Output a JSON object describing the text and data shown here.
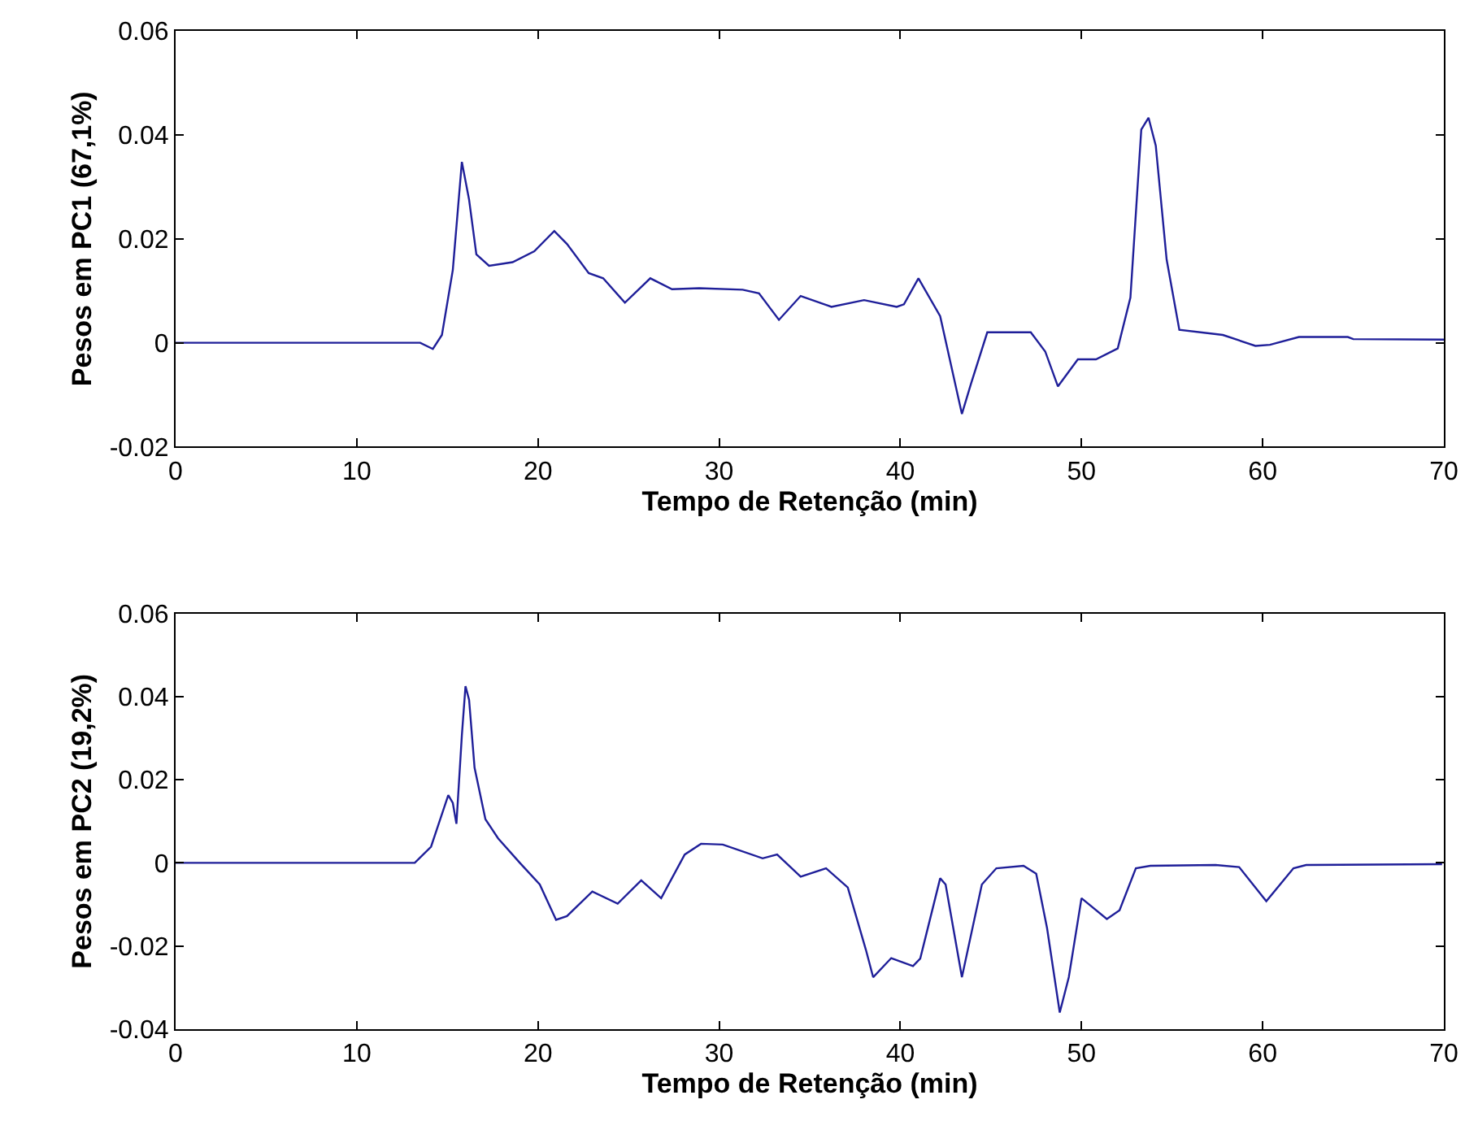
{
  "chart_data": [
    {
      "type": "line",
      "xlabel": "Tempo de Retenção (min)",
      "ylabel": "Pesos em PC1 (67,1%)",
      "xlim": [
        0,
        70
      ],
      "xticks": [
        0,
        10,
        20,
        30,
        40,
        50,
        60,
        70
      ],
      "ylim": [
        -0.02,
        0.06
      ],
      "yticks": [
        -0.02,
        0,
        0.02,
        0.04,
        0.06
      ],
      "marker": "none",
      "line_style": "solid",
      "series": [
        {
          "color": "#1f1f99",
          "x": [
            0,
            13.5,
            14.2,
            14.7,
            15.3,
            15.8,
            16.2,
            16.6,
            17.3,
            18.6,
            19.8,
            20.9,
            21.6,
            22.8,
            23.6,
            24.8,
            26.2,
            27.4,
            28.9,
            31.3,
            32.2,
            33.3,
            34.5,
            36.2,
            38.0,
            39.8,
            40.2,
            41.0,
            42.2,
            43.1,
            43.4,
            43.9,
            44.8,
            47.2,
            48.0,
            48.7,
            49.8,
            50.8,
            52.0,
            52.7,
            53.3,
            53.7,
            54.1,
            54.7,
            55.4,
            57.8,
            59.6,
            60.4,
            62.0,
            64.7,
            65.0,
            70
          ],
          "values": [
            0,
            0,
            -0.0012,
            0.0015,
            0.014,
            0.0348,
            0.0275,
            0.017,
            0.0148,
            0.0155,
            0.0176,
            0.0215,
            0.019,
            0.0134,
            0.0124,
            0.0077,
            0.0124,
            0.0103,
            0.0105,
            0.0102,
            0.0095,
            0.0044,
            0.009,
            0.0069,
            0.0082,
            0.0069,
            0.0074,
            0.0124,
            0.0051,
            -0.009,
            -0.0137,
            -0.0079,
            0.002,
            0.002,
            -0.0017,
            -0.0084,
            -0.0032,
            -0.0032,
            -0.0011,
            0.0087,
            0.041,
            0.0433,
            0.0379,
            0.016,
            0.0025,
            0.0015,
            -0.0006,
            -0.0004,
            0.0011,
            0.0011,
            0.0007,
            0.0006
          ]
        }
      ]
    },
    {
      "type": "line",
      "xlabel": "Tempo de Retenção (min)",
      "ylabel": "Pesos em PC2 (19,2%)",
      "xlim": [
        0,
        70
      ],
      "xticks": [
        0,
        10,
        20,
        30,
        40,
        50,
        60,
        70
      ],
      "ylim": [
        -0.04,
        0.06
      ],
      "yticks": [
        -0.04,
        -0.02,
        0,
        0.02,
        0.04,
        0.06
      ],
      "marker": "none",
      "line_style": "solid",
      "series": [
        {
          "color": "#1f1f99",
          "x": [
            0,
            13.2,
            14.1,
            15.05,
            15.3,
            15.5,
            15.8,
            16.0,
            16.2,
            16.5,
            17.1,
            17.8,
            19.0,
            20.1,
            21.0,
            21.6,
            23.0,
            24.4,
            25.7,
            26.8,
            28.1,
            29.0,
            30.2,
            32.4,
            33.2,
            34.5,
            35.9,
            37.1,
            38.1,
            38.5,
            39.5,
            40.7,
            41.1,
            42.2,
            42.5,
            43.4,
            44.5,
            45.3,
            46.8,
            47.5,
            48.1,
            48.8,
            49.3,
            50.0,
            51.4,
            52.1,
            53.0,
            53.8,
            57.4,
            58.7,
            60.2,
            61.7,
            62.4,
            69.9
          ],
          "values": [
            0,
            0,
            0.0039,
            0.0163,
            0.0144,
            0.0094,
            0.0307,
            0.0425,
            0.0392,
            0.0229,
            0.0105,
            0.0059,
            0,
            -0.0052,
            -0.0137,
            -0.0128,
            -0.0069,
            -0.0098,
            -0.0042,
            -0.0085,
            0.002,
            0.0046,
            0.0044,
            0.0011,
            0.002,
            -0.0033,
            -0.0013,
            -0.0059,
            -0.0209,
            -0.0275,
            -0.0229,
            -0.0248,
            -0.023,
            -0.0037,
            -0.0052,
            -0.0275,
            -0.0052,
            -0.0013,
            -0.0007,
            -0.0026,
            -0.0157,
            -0.036,
            -0.0275,
            -0.0085,
            -0.0135,
            -0.0114,
            -0.0013,
            -0.0007,
            -0.0005,
            -0.001,
            -0.0092,
            -0.0013,
            -0.0005,
            -0.0003
          ]
        }
      ]
    }
  ]
}
